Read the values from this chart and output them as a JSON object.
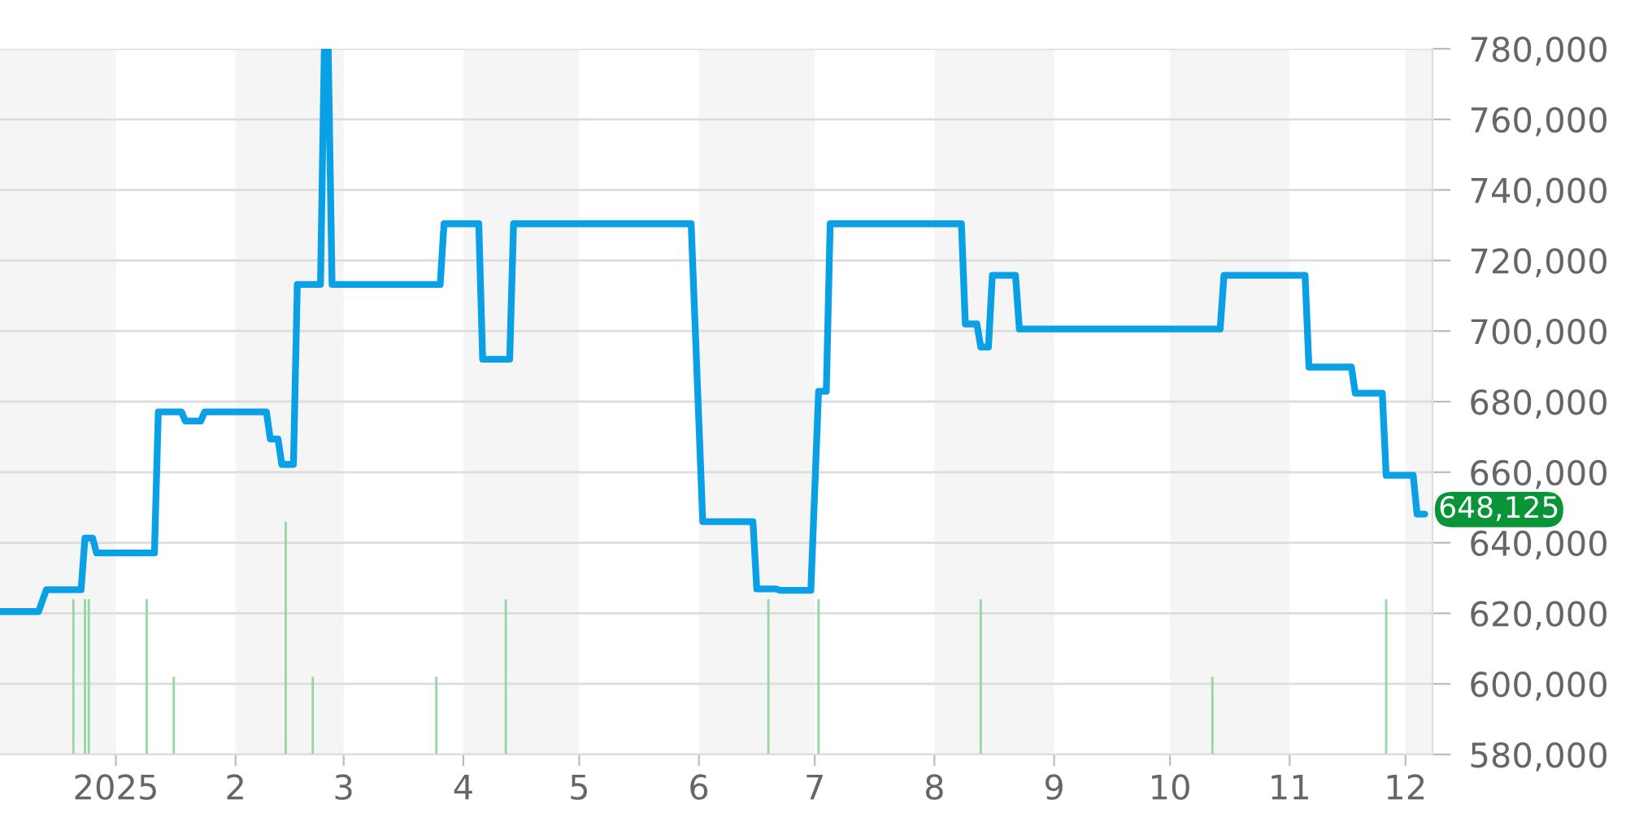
{
  "chart_data": {
    "type": "line",
    "x": [
      "2024-12-02",
      "2024-12-12",
      "2024-12-14",
      "2024-12-23",
      "2024-12-24",
      "2024-12-26",
      "2024-12-27",
      "2025-01-11",
      "2025-01-12",
      "2025-01-18",
      "2025-01-19",
      "2025-01-23",
      "2025-01-24",
      "2025-02-09",
      "2025-02-10",
      "2025-02-12",
      "2025-02-13",
      "2025-02-16",
      "2025-02-17",
      "2025-02-23",
      "2025-02-24",
      "2025-02-25",
      "2025-02-26",
      "2025-03-26",
      "2025-03-27",
      "2025-04-05",
      "2025-04-06",
      "2025-04-13",
      "2025-04-14",
      "2025-05-30",
      "2025-06-02",
      "2025-06-15",
      "2025-06-16",
      "2025-06-21",
      "2025-06-22",
      "2025-06-30",
      "2025-07-02",
      "2025-07-04",
      "2025-07-05",
      "2025-08-08",
      "2025-08-09",
      "2025-08-12",
      "2025-08-13",
      "2025-08-15",
      "2025-08-16",
      "2025-08-22",
      "2025-08-23",
      "2025-10-14",
      "2025-10-15",
      "2025-11-05",
      "2025-11-06",
      "2025-11-17",
      "2025-11-18",
      "2025-11-25",
      "2025-11-26",
      "2025-12-03",
      "2025-12-04",
      "2025-12-06"
    ],
    "series": [
      {
        "type": "bar",
        "color": "#98d6a4",
        "x": [
          "2024-12-21",
          "2024-12-24",
          "2024-12-25",
          "2025-01-09",
          "2025-01-16",
          "2025-02-14",
          "2025-02-21",
          "2025-03-25",
          "2025-04-12",
          "2025-06-19",
          "2025-07-02",
          "2025-08-13",
          "2025-10-12",
          "2025-11-26"
        ],
        "values": [
          624000,
          624000,
          624000,
          624000,
          602000,
          646000,
          602000,
          602000,
          624000,
          624000,
          624000,
          624000,
          602000,
          624000
        ]
      },
      {
        "color": "#0aa0e6",
        "values": [
          620500,
          620500,
          626700,
          626700,
          641300,
          641300,
          637100,
          637100,
          677100,
          677100,
          674500,
          674500,
          677100,
          677100,
          669400,
          669400,
          662200,
          662200,
          713200,
          713200,
          780000,
          780000,
          713200,
          713200,
          730400,
          730400,
          692000,
          692000,
          730400,
          730400,
          646000,
          646000,
          626900,
          626900,
          626500,
          626500,
          682900,
          682900,
          730400,
          730400,
          702000,
          702000,
          695500,
          695500,
          715800,
          715800,
          700600,
          700600,
          715800,
          715800,
          689800,
          689800,
          682400,
          682400,
          659100,
          659100,
          648125,
          648125
        ]
      }
    ],
    "annotations": [
      {
        "text": "648,125",
        "x": "2025-12-06",
        "y": 648125
      }
    ],
    "xlim": [
      "2024-12-02",
      "2025-12-08"
    ],
    "xticks": [
      {
        "value": "2025-01-01",
        "label": "2025"
      },
      {
        "value": "2025-02-01",
        "label": "2"
      },
      {
        "value": "2025-03-01",
        "label": "3"
      },
      {
        "value": "2025-04-01",
        "label": "4"
      },
      {
        "value": "2025-05-01",
        "label": "5"
      },
      {
        "value": "2025-06-01",
        "label": "6"
      },
      {
        "value": "2025-07-01",
        "label": "7"
      },
      {
        "value": "2025-08-01",
        "label": "8"
      },
      {
        "value": "2025-09-01",
        "label": "9"
      },
      {
        "value": "2025-10-01",
        "label": "10"
      },
      {
        "value": "2025-11-01",
        "label": "11"
      },
      {
        "value": "2025-12-01",
        "label": "12"
      }
    ],
    "ylim": [
      580000,
      780000
    ],
    "yticks": [
      {
        "value": 580000,
        "label": "580,000"
      },
      {
        "value": 600000,
        "label": "600,000"
      },
      {
        "value": 620000,
        "label": "620,000"
      },
      {
        "value": 640000,
        "label": "640,000"
      },
      {
        "value": 660000,
        "label": "660,000"
      },
      {
        "value": 680000,
        "label": "680,000"
      },
      {
        "value": 700000,
        "label": "700,000"
      },
      {
        "value": 720000,
        "label": "720,000"
      },
      {
        "value": 740000,
        "label": "740,000"
      },
      {
        "value": 760000,
        "label": "760,000"
      },
      {
        "value": 780000,
        "label": "780,000"
      }
    ],
    "bands": [
      {
        "axis": "x",
        "from": "2024-12-02",
        "to": "2025-01-01",
        "color": "#f5f5f5"
      },
      {
        "axis": "x",
        "from": "2025-02-01",
        "to": "2025-03-01",
        "color": "#f5f5f5"
      },
      {
        "axis": "x",
        "from": "2025-04-01",
        "to": "2025-05-01",
        "color": "#f5f5f5"
      },
      {
        "axis": "x",
        "from": "2025-06-01",
        "to": "2025-07-01",
        "color": "#f5f5f5"
      },
      {
        "axis": "x",
        "from": "2025-08-01",
        "to": "2025-09-01",
        "color": "#f5f5f5"
      },
      {
        "axis": "x",
        "from": "2025-10-01",
        "to": "2025-11-01",
        "color": "#f5f5f5"
      },
      {
        "axis": "x",
        "from": "2025-12-01",
        "to": "2025-12-08",
        "color": "#f5f5f5"
      }
    ],
    "grid": "y",
    "legend": false,
    "marker": "none",
    "line_style": "solid"
  }
}
